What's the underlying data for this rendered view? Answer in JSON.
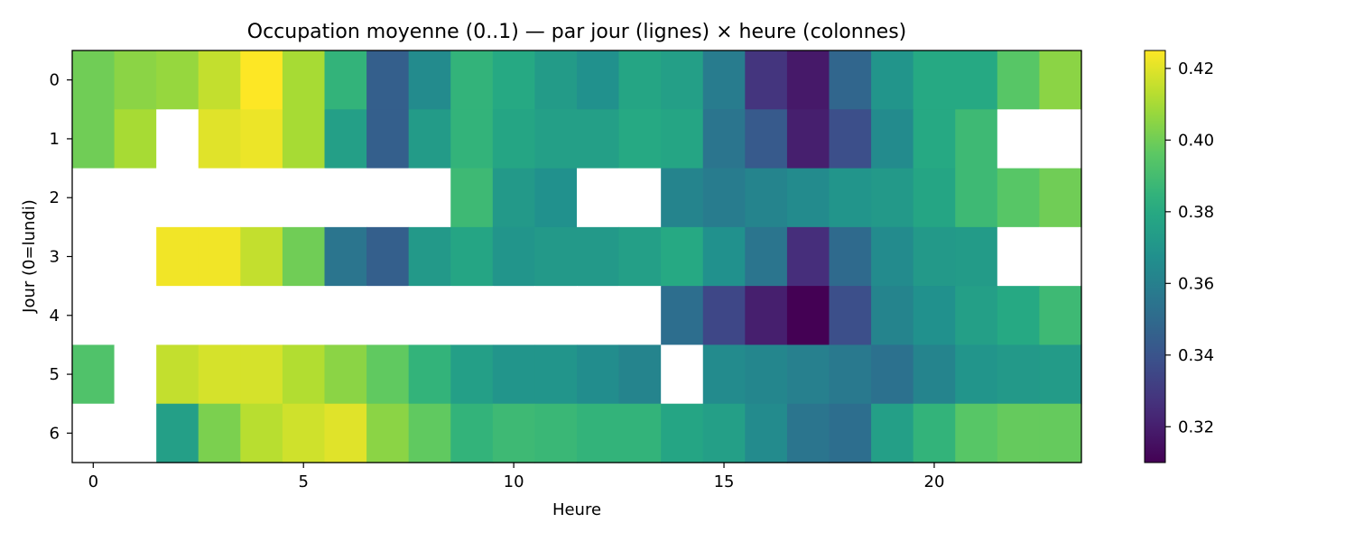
{
  "chart_data": {
    "type": "heatmap",
    "title": "Occupation moyenne (0..1) — par jour (lignes) × heure (colonnes)",
    "xlabel": "Heure",
    "ylabel": "Jour (0=lundi)",
    "x_ticks": [
      0,
      5,
      10,
      15,
      20
    ],
    "y_ticks": [
      0,
      1,
      2,
      3,
      4,
      5,
      6
    ],
    "x_range": [
      -0.5,
      23.5
    ],
    "y_range": [
      -0.5,
      6.5
    ],
    "colormap": "viridis",
    "vmin": 0.31,
    "vmax": 0.425,
    "colorbar_ticks": [
      0.32,
      0.34,
      0.36,
      0.38,
      0.4,
      0.42
    ],
    "colorbar_tick_labels": [
      "0.32",
      "0.34",
      "0.36",
      "0.38",
      "0.40",
      "0.42"
    ],
    "missing_color": "#ffffff",
    "hours": [
      0,
      1,
      2,
      3,
      4,
      5,
      6,
      7,
      8,
      9,
      10,
      11,
      12,
      13,
      14,
      15,
      16,
      17,
      18,
      19,
      20,
      21,
      22,
      23
    ],
    "days": [
      0,
      1,
      2,
      3,
      4,
      5,
      6
    ],
    "values": [
      [
        0.4,
        0.405,
        0.407,
        0.415,
        0.425,
        0.41,
        0.385,
        0.345,
        0.365,
        0.385,
        0.38,
        0.373,
        0.368,
        0.378,
        0.375,
        0.358,
        0.328,
        0.318,
        0.348,
        0.37,
        0.38,
        0.38,
        0.395,
        0.405
      ],
      [
        0.4,
        0.41,
        null,
        0.42,
        0.422,
        0.41,
        0.375,
        0.345,
        0.373,
        0.385,
        0.378,
        0.375,
        0.375,
        0.38,
        0.378,
        0.355,
        0.343,
        0.32,
        0.338,
        0.365,
        0.38,
        0.388,
        null,
        null
      ],
      [
        null,
        null,
        null,
        null,
        null,
        null,
        null,
        null,
        null,
        0.388,
        0.372,
        0.368,
        null,
        null,
        0.362,
        0.358,
        0.362,
        0.365,
        0.37,
        0.372,
        0.378,
        0.388,
        0.395,
        0.4
      ],
      [
        null,
        null,
        0.423,
        0.423,
        0.415,
        0.4,
        0.355,
        0.345,
        0.372,
        0.378,
        0.37,
        0.372,
        0.372,
        0.375,
        0.38,
        0.368,
        0.355,
        0.325,
        0.35,
        0.365,
        0.372,
        0.373,
        null,
        null
      ],
      [
        null,
        null,
        null,
        null,
        null,
        null,
        null,
        null,
        null,
        null,
        null,
        null,
        null,
        null,
        0.352,
        0.335,
        0.32,
        0.31,
        0.338,
        0.362,
        0.368,
        0.375,
        0.38,
        0.388
      ],
      [
        0.393,
        null,
        0.415,
        0.418,
        0.418,
        0.412,
        0.405,
        0.397,
        0.385,
        0.375,
        0.37,
        0.37,
        0.366,
        0.362,
        null,
        0.365,
        0.363,
        0.36,
        0.357,
        0.353,
        0.362,
        0.37,
        0.372,
        0.373
      ],
      [
        null,
        null,
        0.375,
        0.402,
        0.413,
        0.417,
        0.42,
        0.405,
        0.397,
        0.385,
        0.388,
        0.387,
        0.385,
        0.385,
        0.378,
        0.375,
        0.365,
        0.355,
        0.352,
        0.375,
        0.385,
        0.395,
        0.398,
        0.398
      ]
    ]
  }
}
